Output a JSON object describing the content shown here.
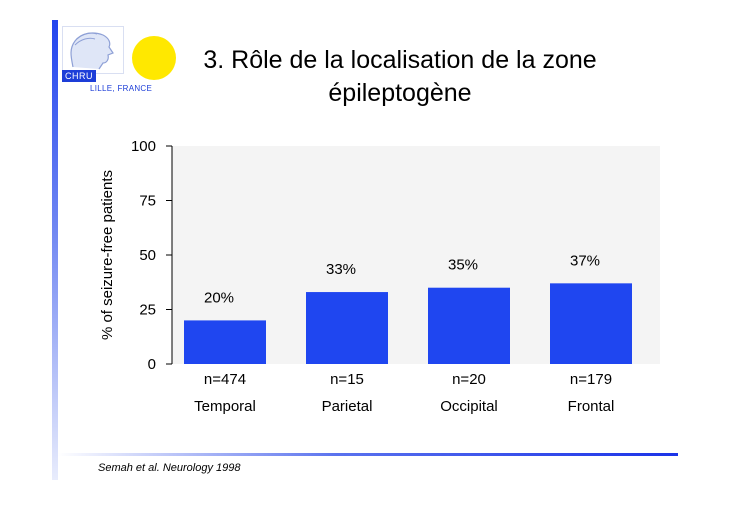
{
  "slide": {
    "title_line1": "3. Rôle de la localisation de la zone",
    "title_line2": "épileptogène",
    "citation": "Semah et al. Neurology 1998"
  },
  "logo": {
    "chru": "CHRU",
    "city": "LILLE, FRANCE",
    "face_icon": "profile-face-icon",
    "sun_icon": "sun-disc-icon",
    "colors": {
      "sun": "#ffe800",
      "brand_blue": "#1d3ed8"
    }
  },
  "chart_data": {
    "type": "bar",
    "title": "",
    "xlabel": "",
    "ylabel": "% of seizure-free patients",
    "categories": [
      "Temporal",
      "Parietal",
      "Occipital",
      "Frontal"
    ],
    "sample_sizes": [
      "n=474",
      "n=15",
      "n=20",
      "n=179"
    ],
    "values": [
      20,
      33,
      35,
      37
    ],
    "value_labels": [
      "20%",
      "33%",
      "35%",
      "37%"
    ],
    "ylim": [
      0,
      100
    ],
    "yticks": [
      0,
      25,
      50,
      75,
      100
    ],
    "grid": false,
    "bar_color": "#1f46f0",
    "plot_background": "#f4f4f4"
  }
}
